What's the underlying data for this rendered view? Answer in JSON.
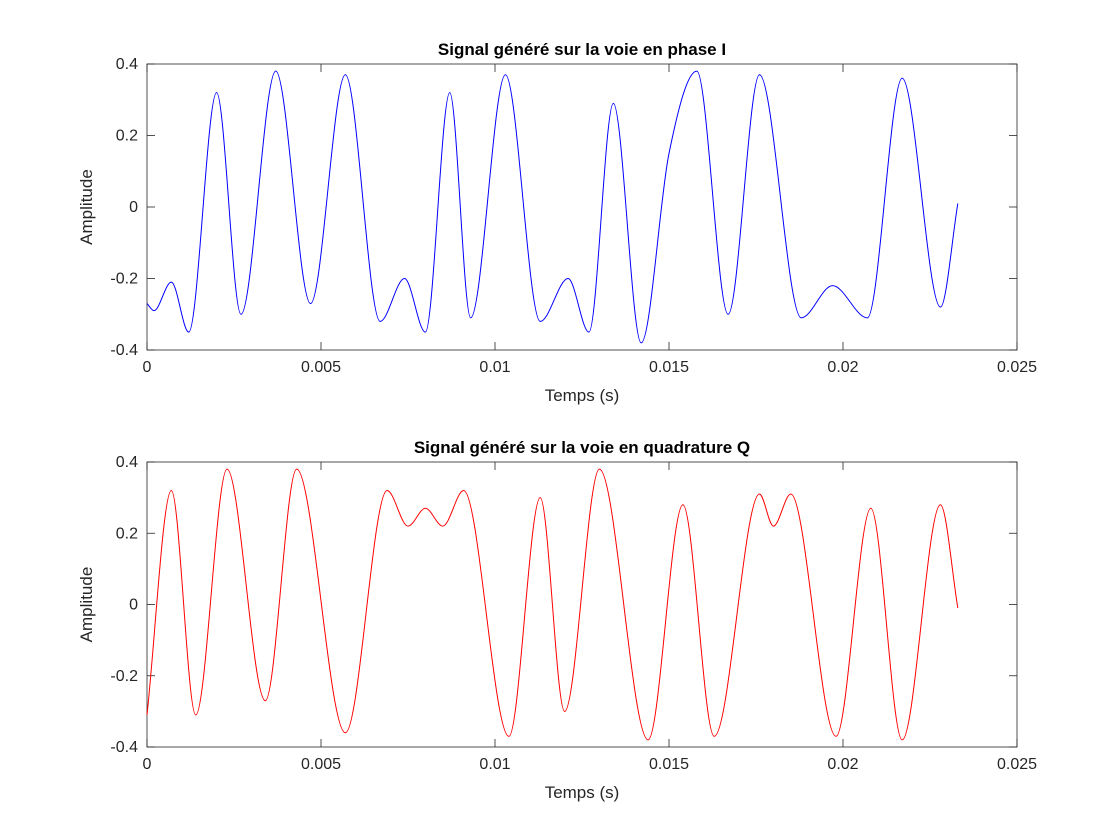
{
  "chart_data": [
    {
      "type": "line",
      "title": "Signal généré sur la voie en phase I",
      "xlabel": "Temps (s)",
      "ylabel": "Amplitude",
      "xlim": [
        0,
        0.025
      ],
      "ylim": [
        -0.4,
        0.4
      ],
      "xticks": [
        0,
        0.005,
        0.01,
        0.015,
        0.02,
        0.025
      ],
      "xtick_labels": [
        "0",
        "0.005",
        "0.01",
        "0.015",
        "0.02",
        "0.025"
      ],
      "yticks": [
        -0.4,
        -0.2,
        0,
        0.2,
        0.4
      ],
      "ytick_labels": [
        "-0.4",
        "-0.2",
        "0",
        "0.2",
        "0.4"
      ],
      "grid": false,
      "series": [
        {
          "color": "#0000ff",
          "x": [
            0,
            0.0002,
            0.0007,
            0.0012,
            0.002,
            0.0027,
            0.0037,
            0.0047,
            0.0057,
            0.0067,
            0.0074,
            0.008,
            0.0087,
            0.0093,
            0.0103,
            0.0113,
            0.0121,
            0.0127,
            0.0134,
            0.0142,
            0.015,
            0.0158,
            0.0167,
            0.0176,
            0.0188,
            0.0197,
            0.0207,
            0.0217,
            0.0228,
            0.0233
          ],
          "y": [
            -0.27,
            -0.29,
            -0.21,
            -0.35,
            0.32,
            -0.3,
            0.38,
            -0.27,
            0.37,
            -0.32,
            -0.2,
            -0.35,
            0.32,
            -0.31,
            0.37,
            -0.32,
            -0.2,
            -0.35,
            0.29,
            -0.38,
            0.15,
            0.38,
            -0.3,
            0.37,
            -0.31,
            -0.22,
            -0.31,
            0.36,
            -0.28,
            0.01
          ]
        }
      ]
    },
    {
      "type": "line",
      "title": "Signal généré sur la voie en quadrature Q",
      "xlabel": "Temps (s)",
      "ylabel": "Amplitude",
      "xlim": [
        0,
        0.025
      ],
      "ylim": [
        -0.4,
        0.4
      ],
      "xticks": [
        0,
        0.005,
        0.01,
        0.015,
        0.02,
        0.025
      ],
      "xtick_labels": [
        "0",
        "0.005",
        "0.01",
        "0.015",
        "0.02",
        "0.025"
      ],
      "yticks": [
        -0.4,
        -0.2,
        0,
        0.2,
        0.4
      ],
      "ytick_labels": [
        "-0.4",
        "-0.2",
        "0",
        "0.2",
        "0.4"
      ],
      "grid": false,
      "series": [
        {
          "color": "#ff0000",
          "x": [
            0,
            0.0007,
            0.0014,
            0.0023,
            0.0034,
            0.0043,
            0.0057,
            0.0069,
            0.0075,
            0.008,
            0.0085,
            0.0091,
            0.0104,
            0.0113,
            0.012,
            0.013,
            0.0144,
            0.0154,
            0.0163,
            0.0176,
            0.018,
            0.0185,
            0.0198,
            0.0208,
            0.0217,
            0.0228,
            0.0233
          ],
          "y": [
            -0.31,
            0.32,
            -0.31,
            0.38,
            -0.27,
            0.38,
            -0.36,
            0.32,
            0.22,
            0.27,
            0.22,
            0.32,
            -0.37,
            0.3,
            -0.3,
            0.38,
            -0.38,
            0.28,
            -0.37,
            0.31,
            0.22,
            0.31,
            -0.37,
            0.27,
            -0.38,
            0.28,
            -0.01
          ]
        }
      ]
    }
  ]
}
